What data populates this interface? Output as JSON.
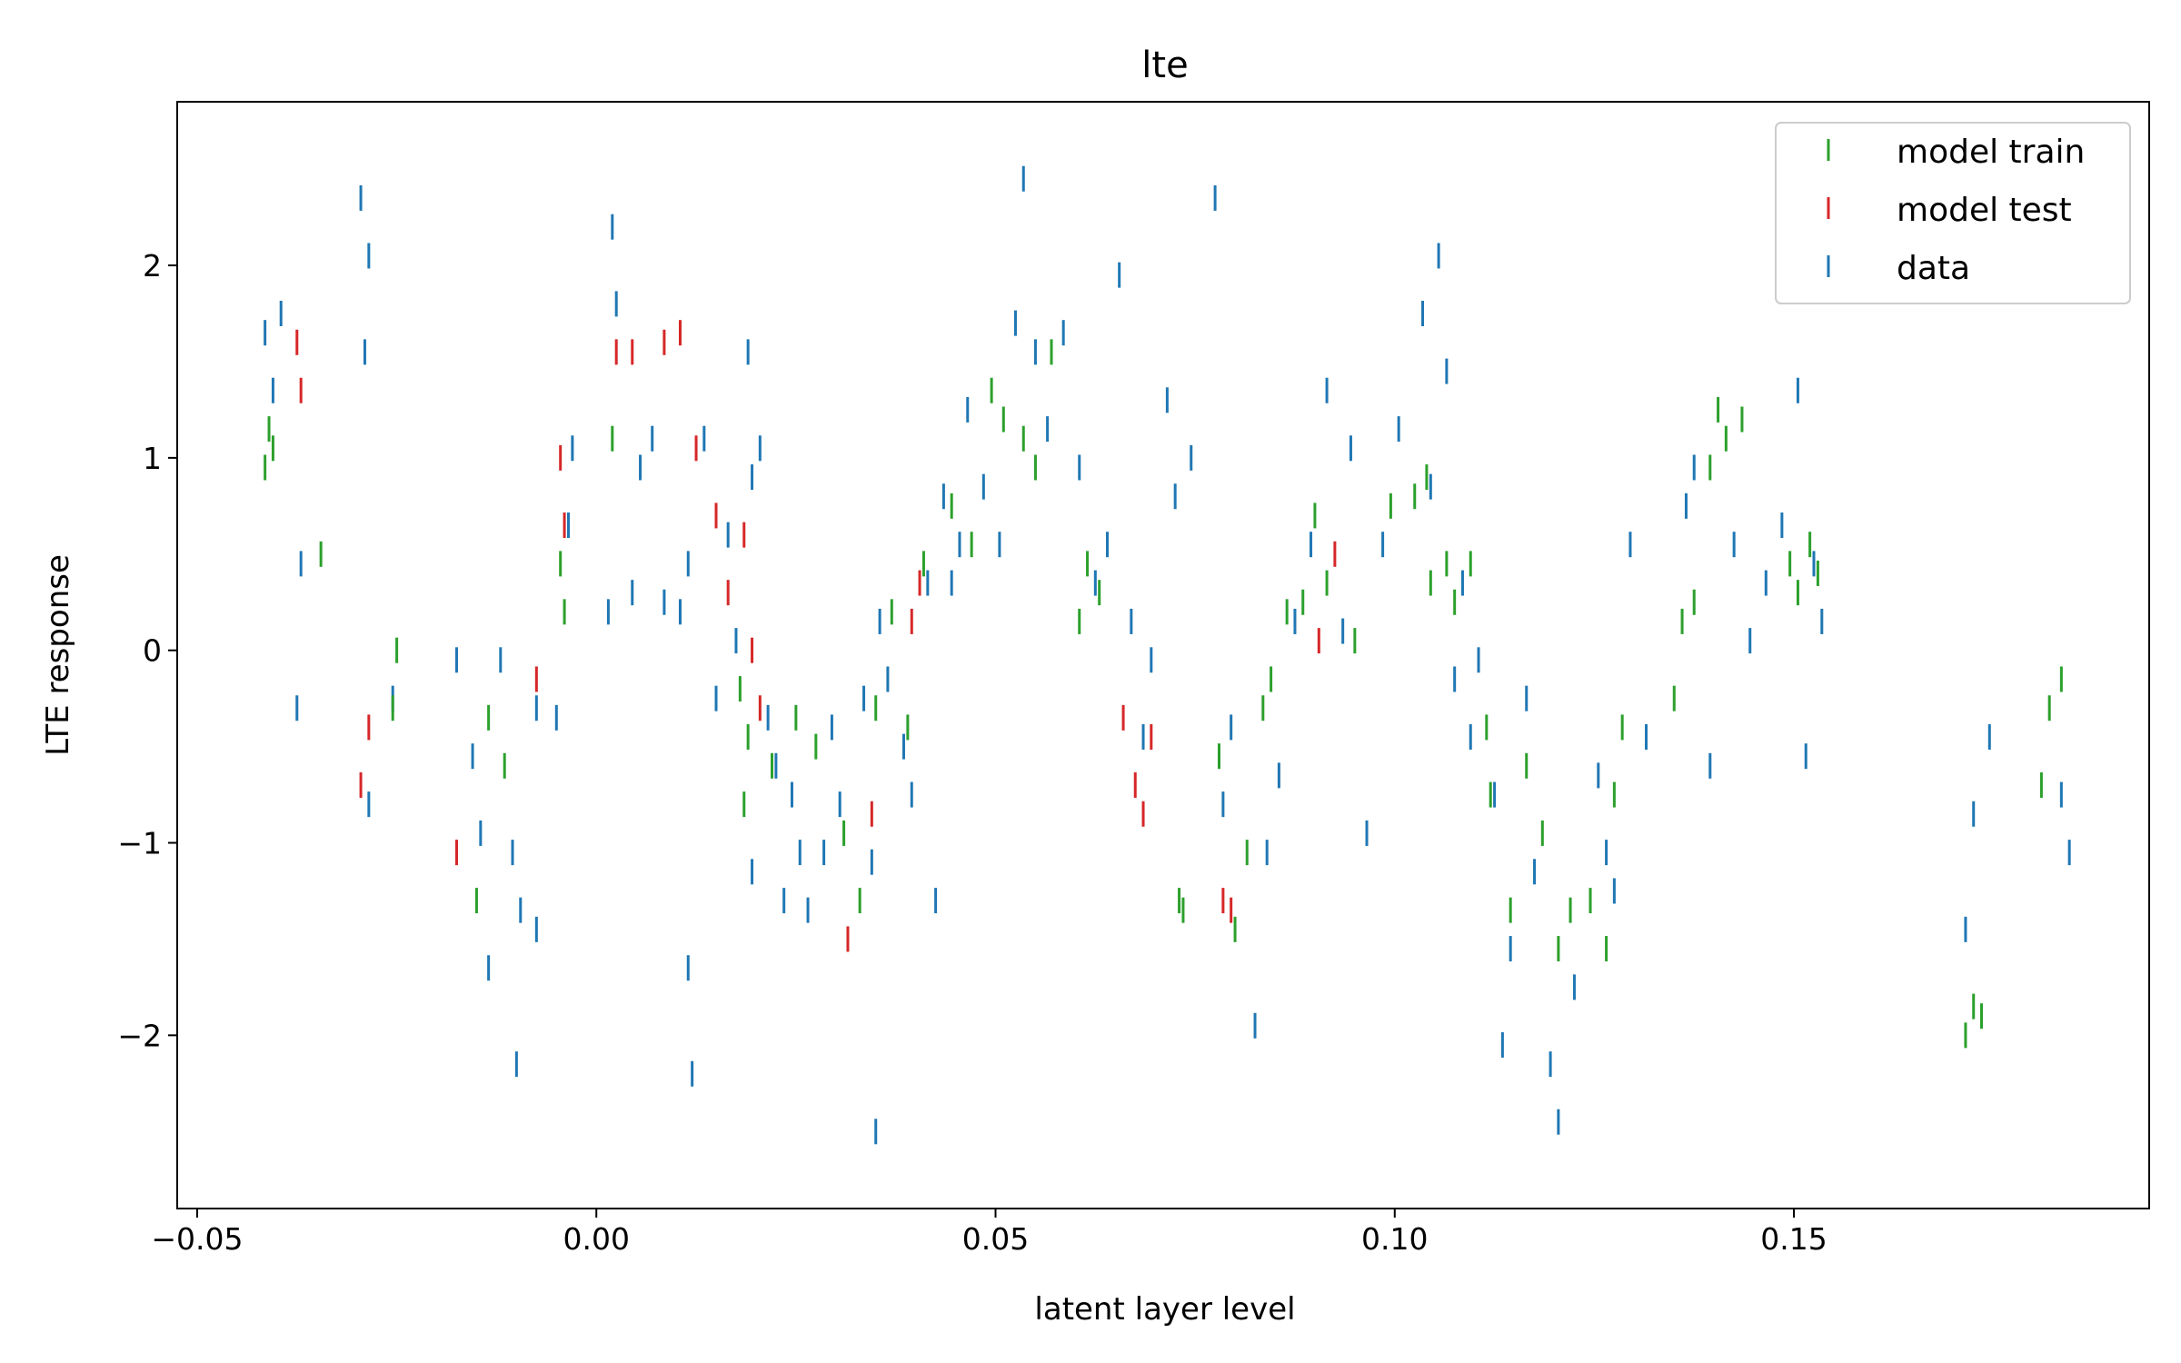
{
  "chart_data": {
    "type": "scatter",
    "title": "lte",
    "xlabel": "latent layer level",
    "ylabel": "LTE response",
    "xlim": [
      -0.0525,
      0.1945
    ],
    "ylim": [
      -2.9,
      2.85
    ],
    "xticks": [
      -0.05,
      0.0,
      0.05,
      0.1,
      0.15
    ],
    "xtick_labels": [
      "−0.05",
      "0.00",
      "0.05",
      "0.10",
      "0.15"
    ],
    "yticks": [
      -2,
      -1,
      0,
      1,
      2
    ],
    "ytick_labels": [
      "−2",
      "−1",
      "0",
      "1",
      "2"
    ],
    "grid": false,
    "legend_position": "top-right",
    "marker": "vertical-line",
    "series": [
      {
        "name": "model train",
        "color": "#2ca02c",
        "points": [
          [
            -0.0415,
            0.95
          ],
          [
            -0.041,
            1.15
          ],
          [
            -0.0405,
            1.05
          ],
          [
            -0.0345,
            0.5
          ],
          [
            -0.0255,
            -0.3
          ],
          [
            -0.025,
            0.0
          ],
          [
            -0.015,
            -1.3
          ],
          [
            -0.0135,
            -0.35
          ],
          [
            -0.0115,
            -0.6
          ],
          [
            -0.0045,
            0.45
          ],
          [
            -0.004,
            0.2
          ],
          [
            0.002,
            1.1
          ],
          [
            0.018,
            -0.2
          ],
          [
            0.019,
            -0.45
          ],
          [
            0.0185,
            -0.8
          ],
          [
            0.022,
            -0.6
          ],
          [
            0.025,
            -0.35
          ],
          [
            0.0275,
            -0.5
          ],
          [
            0.031,
            -0.95
          ],
          [
            0.033,
            -1.3
          ],
          [
            0.035,
            -0.3
          ],
          [
            0.037,
            0.2
          ],
          [
            0.039,
            -0.4
          ],
          [
            0.041,
            0.45
          ],
          [
            0.0445,
            0.75
          ],
          [
            0.047,
            0.55
          ],
          [
            0.0495,
            1.35
          ],
          [
            0.051,
            1.2
          ],
          [
            0.0535,
            1.1
          ],
          [
            0.055,
            0.95
          ],
          [
            0.057,
            1.55
          ],
          [
            0.0605,
            0.15
          ],
          [
            0.0615,
            0.45
          ],
          [
            0.063,
            0.3
          ],
          [
            0.073,
            -1.3
          ],
          [
            0.0735,
            -1.35
          ],
          [
            0.078,
            -0.55
          ],
          [
            0.08,
            -1.45
          ],
          [
            0.0815,
            -1.05
          ],
          [
            0.0835,
            -0.3
          ],
          [
            0.0845,
            -0.15
          ],
          [
            0.0865,
            0.2
          ],
          [
            0.0885,
            0.25
          ],
          [
            0.09,
            0.7
          ],
          [
            0.0915,
            0.35
          ],
          [
            0.095,
            0.05
          ],
          [
            0.0995,
            0.75
          ],
          [
            0.1025,
            0.8
          ],
          [
            0.104,
            0.9
          ],
          [
            0.1045,
            0.35
          ],
          [
            0.1065,
            0.45
          ],
          [
            0.1075,
            0.25
          ],
          [
            0.1095,
            0.45
          ],
          [
            0.1115,
            -0.4
          ],
          [
            0.112,
            -0.75
          ],
          [
            0.1145,
            -1.35
          ],
          [
            0.1165,
            -0.6
          ],
          [
            0.1185,
            -0.95
          ],
          [
            0.1205,
            -1.55
          ],
          [
            0.122,
            -1.35
          ],
          [
            0.1245,
            -1.3
          ],
          [
            0.1265,
            -1.55
          ],
          [
            0.1275,
            -0.75
          ],
          [
            0.1285,
            -0.4
          ],
          [
            0.135,
            -0.25
          ],
          [
            0.136,
            0.15
          ],
          [
            0.1375,
            0.25
          ],
          [
            0.1395,
            0.95
          ],
          [
            0.1405,
            1.25
          ],
          [
            0.1415,
            1.1
          ],
          [
            0.1435,
            1.2
          ],
          [
            0.1495,
            0.45
          ],
          [
            0.1505,
            0.3
          ],
          [
            0.152,
            0.55
          ],
          [
            0.153,
            0.4
          ],
          [
            0.1715,
            -2.0
          ],
          [
            0.1725,
            -1.85
          ],
          [
            0.1735,
            -1.9
          ],
          [
            0.181,
            -0.7
          ],
          [
            0.182,
            -0.3
          ],
          [
            0.1835,
            -0.15
          ]
        ]
      },
      {
        "name": "model test",
        "color": "#d62728",
        "points": [
          [
            -0.0375,
            1.6
          ],
          [
            -0.037,
            1.35
          ],
          [
            -0.0295,
            -0.7
          ],
          [
            -0.0285,
            -0.4
          ],
          [
            -0.0175,
            -1.05
          ],
          [
            -0.0075,
            -0.15
          ],
          [
            -0.0045,
            1.0
          ],
          [
            -0.004,
            0.65
          ],
          [
            0.0025,
            1.55
          ],
          [
            0.0045,
            1.55
          ],
          [
            0.0085,
            1.6
          ],
          [
            0.0105,
            1.65
          ],
          [
            0.0125,
            1.05
          ],
          [
            0.015,
            0.7
          ],
          [
            0.0165,
            0.3
          ],
          [
            0.0185,
            0.6
          ],
          [
            0.0195,
            0.0
          ],
          [
            0.0205,
            -0.3
          ],
          [
            0.0315,
            -1.5
          ],
          [
            0.0345,
            -0.85
          ],
          [
            0.0395,
            0.15
          ],
          [
            0.0405,
            0.35
          ],
          [
            0.066,
            -0.35
          ],
          [
            0.0675,
            -0.7
          ],
          [
            0.0685,
            -0.85
          ],
          [
            0.0695,
            -0.45
          ],
          [
            0.0785,
            -1.3
          ],
          [
            0.0795,
            -1.35
          ],
          [
            0.0905,
            0.05
          ],
          [
            0.0925,
            0.5
          ]
        ]
      },
      {
        "name": "data",
        "color": "#1f77b4",
        "points": [
          [
            -0.0415,
            1.65
          ],
          [
            -0.0405,
            1.35
          ],
          [
            -0.0395,
            1.75
          ],
          [
            -0.0375,
            -0.3
          ],
          [
            -0.037,
            0.45
          ],
          [
            -0.0295,
            2.35
          ],
          [
            -0.0285,
            2.05
          ],
          [
            -0.029,
            1.55
          ],
          [
            -0.0285,
            -0.8
          ],
          [
            -0.0255,
            -0.25
          ],
          [
            -0.0175,
            -0.05
          ],
          [
            -0.0155,
            -0.55
          ],
          [
            -0.0145,
            -0.95
          ],
          [
            -0.0135,
            -1.65
          ],
          [
            -0.012,
            -0.05
          ],
          [
            -0.0105,
            -1.05
          ],
          [
            -0.0095,
            -1.35
          ],
          [
            -0.01,
            -2.15
          ],
          [
            -0.0075,
            -0.3
          ],
          [
            -0.0075,
            -1.45
          ],
          [
            -0.005,
            -0.35
          ],
          [
            -0.0035,
            0.65
          ],
          [
            -0.003,
            1.05
          ],
          [
            0.002,
            2.2
          ],
          [
            0.0015,
            0.2
          ],
          [
            0.0025,
            1.8
          ],
          [
            0.0045,
            0.3
          ],
          [
            0.0055,
            0.95
          ],
          [
            0.007,
            1.1
          ],
          [
            0.0085,
            0.25
          ],
          [
            0.0105,
            0.2
          ],
          [
            0.0115,
            0.45
          ],
          [
            0.0135,
            1.1
          ],
          [
            0.0115,
            -1.65
          ],
          [
            0.012,
            -2.2
          ],
          [
            0.015,
            -0.25
          ],
          [
            0.0165,
            0.6
          ],
          [
            0.0175,
            0.05
          ],
          [
            0.019,
            1.55
          ],
          [
            0.0195,
            0.9
          ],
          [
            0.0205,
            1.05
          ],
          [
            0.0215,
            -0.35
          ],
          [
            0.0225,
            -0.6
          ],
          [
            0.0195,
            -1.15
          ],
          [
            0.0235,
            -1.3
          ],
          [
            0.0245,
            -0.75
          ],
          [
            0.0255,
            -1.05
          ],
          [
            0.0265,
            -1.35
          ],
          [
            0.0285,
            -1.05
          ],
          [
            0.0295,
            -0.4
          ],
          [
            0.0305,
            -0.8
          ],
          [
            0.0335,
            -0.25
          ],
          [
            0.0345,
            -1.1
          ],
          [
            0.035,
            -2.5
          ],
          [
            0.0355,
            0.15
          ],
          [
            0.0365,
            -0.15
          ],
          [
            0.0385,
            -0.5
          ],
          [
            0.0395,
            -0.75
          ],
          [
            0.0415,
            0.35
          ],
          [
            0.0425,
            -1.3
          ],
          [
            0.0435,
            0.8
          ],
          [
            0.0445,
            0.35
          ],
          [
            0.0455,
            0.55
          ],
          [
            0.0465,
            1.25
          ],
          [
            0.0485,
            0.85
          ],
          [
            0.0505,
            0.55
          ],
          [
            0.0525,
            1.7
          ],
          [
            0.0535,
            2.45
          ],
          [
            0.055,
            1.55
          ],
          [
            0.0565,
            1.15
          ],
          [
            0.0585,
            1.65
          ],
          [
            0.0605,
            0.95
          ],
          [
            0.0625,
            0.35
          ],
          [
            0.064,
            0.55
          ],
          [
            0.0655,
            1.95
          ],
          [
            0.067,
            0.15
          ],
          [
            0.0685,
            -0.45
          ],
          [
            0.0695,
            -0.05
          ],
          [
            0.0715,
            1.3
          ],
          [
            0.0725,
            0.8
          ],
          [
            0.0745,
            1.0
          ],
          [
            0.0775,
            2.35
          ],
          [
            0.0785,
            -0.8
          ],
          [
            0.0795,
            -0.4
          ],
          [
            0.0825,
            -1.95
          ],
          [
            0.084,
            -1.05
          ],
          [
            0.0855,
            -0.65
          ],
          [
            0.0875,
            0.15
          ],
          [
            0.0895,
            0.55
          ],
          [
            0.0915,
            1.35
          ],
          [
            0.0935,
            0.1
          ],
          [
            0.0945,
            1.05
          ],
          [
            0.0965,
            -0.95
          ],
          [
            0.0985,
            0.55
          ],
          [
            0.1005,
            1.15
          ],
          [
            0.1035,
            1.75
          ],
          [
            0.1045,
            0.85
          ],
          [
            0.1055,
            2.05
          ],
          [
            0.1065,
            1.45
          ],
          [
            0.1075,
            -0.15
          ],
          [
            0.1085,
            0.35
          ],
          [
            0.1095,
            -0.45
          ],
          [
            0.1105,
            -0.05
          ],
          [
            0.1125,
            -0.75
          ],
          [
            0.1135,
            -2.05
          ],
          [
            0.1145,
            -1.55
          ],
          [
            0.1165,
            -0.25
          ],
          [
            0.1175,
            -1.15
          ],
          [
            0.1195,
            -2.15
          ],
          [
            0.1205,
            -2.45
          ],
          [
            0.1225,
            -1.75
          ],
          [
            0.1255,
            -0.65
          ],
          [
            0.1265,
            -1.05
          ],
          [
            0.1275,
            -1.25
          ],
          [
            0.1295,
            0.55
          ],
          [
            0.1315,
            -0.45
          ],
          [
            0.1365,
            0.75
          ],
          [
            0.1375,
            0.95
          ],
          [
            0.1395,
            -0.6
          ],
          [
            0.1425,
            0.55
          ],
          [
            0.1445,
            0.05
          ],
          [
            0.1465,
            0.35
          ],
          [
            0.1485,
            0.65
          ],
          [
            0.1505,
            1.35
          ],
          [
            0.1525,
            0.45
          ],
          [
            0.1535,
            0.15
          ],
          [
            0.1515,
            -0.55
          ],
          [
            0.1715,
            -1.45
          ],
          [
            0.1725,
            -0.85
          ],
          [
            0.1745,
            -0.45
          ],
          [
            0.1835,
            -0.75
          ],
          [
            0.1845,
            -1.05
          ]
        ]
      }
    ]
  }
}
